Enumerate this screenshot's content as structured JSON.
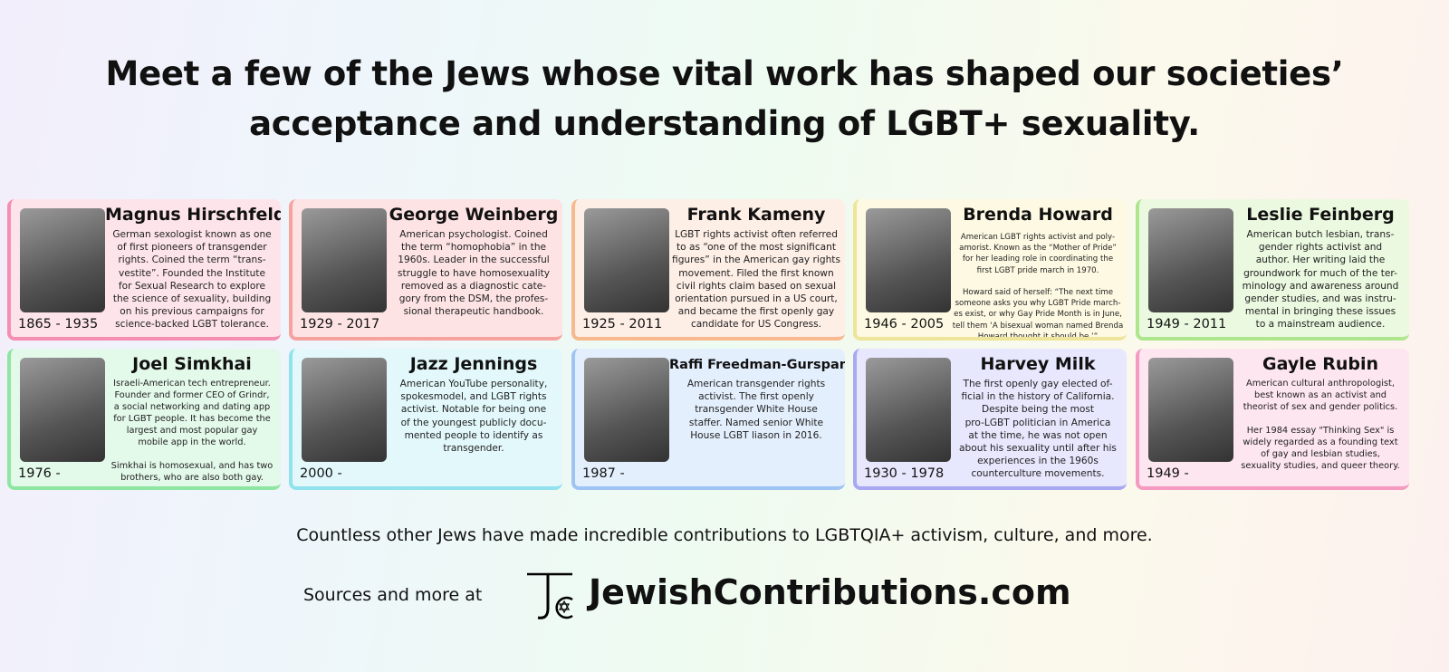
{
  "header": {
    "title_line1": "Meet a few of the Jews whose vital work has shaped our societies’",
    "title_line2": "acceptance and understanding of LGBT+ sexuality."
  },
  "people": [
    {
      "name": "Magnus Hirschfeld",
      "years": "1865 - 1935",
      "bg": "#fde4ea",
      "accent": "#f48fb1",
      "desc": "German sexologist known as one\nof first pioneers of transgender\nrights. Coined the term “trans-\nvestite”. Founded the Institute\nfor Sexual Research to explore\nthe science of sexuality, building\non his previous campaigns for\nscience-backed LGBT tolerance."
    },
    {
      "name": "George Weinberg",
      "years": "1929 - 2017",
      "bg": "#fde3e4",
      "accent": "#f6a3a0",
      "desc": "American psychologist. Coined\nthe term “homophobia” in the\n1960s. Leader in the successful\nstruggle to have homosexuality\nremoved as a diagnostic cate-\ngory from the DSM, the profes-\nsional therapeutic handbook."
    },
    {
      "name": "Frank Kameny",
      "years": "1925 - 2011",
      "bg": "#fdeee6",
      "accent": "#f8b98e",
      "desc": "LGBT rights activist often referred\nto as “one of the most significant\nfigures” in the American gay rights\nmovement. Filed the first known\ncivil rights claim based on sexual\norientation pursued in a US court,\nand became the first openly gay\ncandidate for US Congress."
    },
    {
      "name": "Brenda Howard",
      "years": "1946 - 2005",
      "bg": "#fdf9e2",
      "accent": "#eee59a",
      "small": true,
      "desc": "American LGBT rights activist and poly-\namorist. Known as the “Mother of Pride”\nfor her leading role in coordinating the\nfirst LGBT pride march in 1970.\n\nHoward said of herself: “The next time\nsomeone asks you why LGBT Pride march-\nes exist, or why Gay Pride Month is in June,\ntell them ‘A bisexual woman named Brenda\nHoward thought it should be.’”"
    },
    {
      "name": "Leslie Feinberg",
      "years": "1949 - 2011",
      "bg": "#ebf9e0",
      "accent": "#ade68c",
      "desc": "American butch lesbian, trans-\ngender rights activist and\nauthor. Her writing laid the\ngroundwork for much of the ter-\nminology and awareness around\ngender studies, and was instru-\nmental in bringing these issues\nto a mainstream audience."
    },
    {
      "name": "Joel Simkhai",
      "years": "1976 -",
      "bg": "#e3f9ea",
      "accent": "#8fe6a2",
      "desc": "Israeli-American tech entrepreneur.\nFounder and former CEO of Grindr,\na social networking and dating app\nfor LGBT people. It has become the\nlargest and most popular gay\nmobile app in the world.\n\nSimkhai is homosexual, and has two\nbrothers, who are also both gay.",
      "smalldesc": true
    },
    {
      "name": "Jazz Jennings",
      "years": "2000 -",
      "bg": "#e2f8fb",
      "accent": "#92e2ee",
      "desc": "American YouTube personality,\nspokesmodel, and LGBT rights\nactivist. Notable for being one\nof the youngest publicly docu-\nmented people to identify as\ntransgender."
    },
    {
      "name": "Raffi Freedman-Gurspan",
      "years": "1987 -",
      "bg": "#e4effd",
      "accent": "#9fc4f4",
      "smallname": true,
      "desc": "American transgender rights\nactivist. The first openly\ntransgender White House\nstaffer. Named senior White\nHouse LGBT liason in 2016."
    },
    {
      "name": "Harvey Milk",
      "years": "1930 - 1978",
      "bg": "#e7e7fd",
      "accent": "#a9a8f2",
      "desc": "The first openly gay elected of-\nficial in the history of California.\nDespite being the most\npro-LGBT politician in America\nat the time, he was not open\nabout his sexuality until after his\nexperiences in the 1960s\ncounterculture movements."
    },
    {
      "name": "Gayle Rubin",
      "years": "1949 -",
      "bg": "#fde6ef",
      "accent": "#f59bc1",
      "desc": "American cultural anthropologist,\nbest known as an activist and\ntheorist of sex and gender politics.\n\nHer 1984 essay \"Thinking Sex\" is\nwidely regarded as a founding text\nof gay and lesbian studies,\nsexuality studies, and queer theory.",
      "smalldesc": true
    }
  ],
  "footer": {
    "line": "Countless other Jews have made incredible contributions to LGBTQIA+ activism, culture, and more.",
    "sources_label": "Sources and more at",
    "logo_text": "JC",
    "site": "JewishContributions.com"
  }
}
